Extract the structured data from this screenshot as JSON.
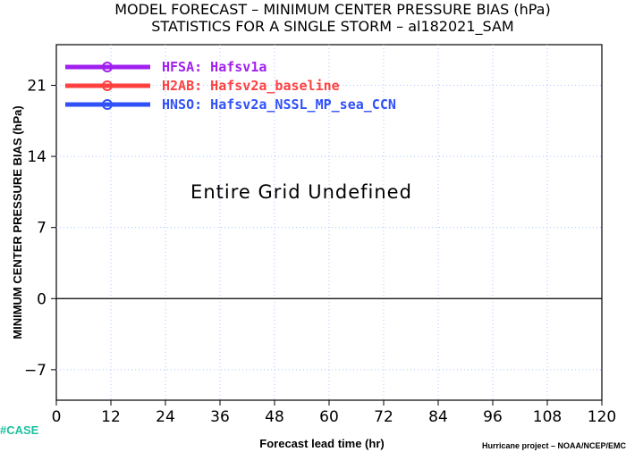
{
  "chart_data": {
    "type": "line",
    "title": "MODEL FORECAST – MINIMUM CENTER PRESSURE BIAS (hPa)",
    "subtitle": "STATISTICS FOR A SINGLE STORM – al182021_SAM",
    "xlabel": "Forecast lead time (hr)",
    "ylabel": "MINIMUM CENTER PRESSURE BIAS (hPa)",
    "xlim": [
      0,
      120
    ],
    "ylim": [
      -10,
      25
    ],
    "x_ticks": [
      0,
      12,
      24,
      36,
      48,
      60,
      72,
      84,
      96,
      108,
      120
    ],
    "y_ticks": [
      -7,
      0,
      7,
      14,
      21
    ],
    "grid": true,
    "zero_line": 0,
    "legend_position": "top-left",
    "series": [
      {
        "name": "HFSA: Hafsv1a",
        "color": "#a020f0",
        "values": []
      },
      {
        "name": "H2AB: Hafsv2a_baseline",
        "color": "#ff4040",
        "values": []
      },
      {
        "name": "HNSO: Hafsv2a_NSSL_MP_sea_CCN",
        "color": "#3050f8",
        "values": []
      }
    ],
    "annotation": "Entire Grid Undefined"
  },
  "footer": {
    "credit": "Hurricane project – NOAA/NCEP/EMC",
    "case_label": "#CASE",
    "case_color": "#20c0a0"
  }
}
